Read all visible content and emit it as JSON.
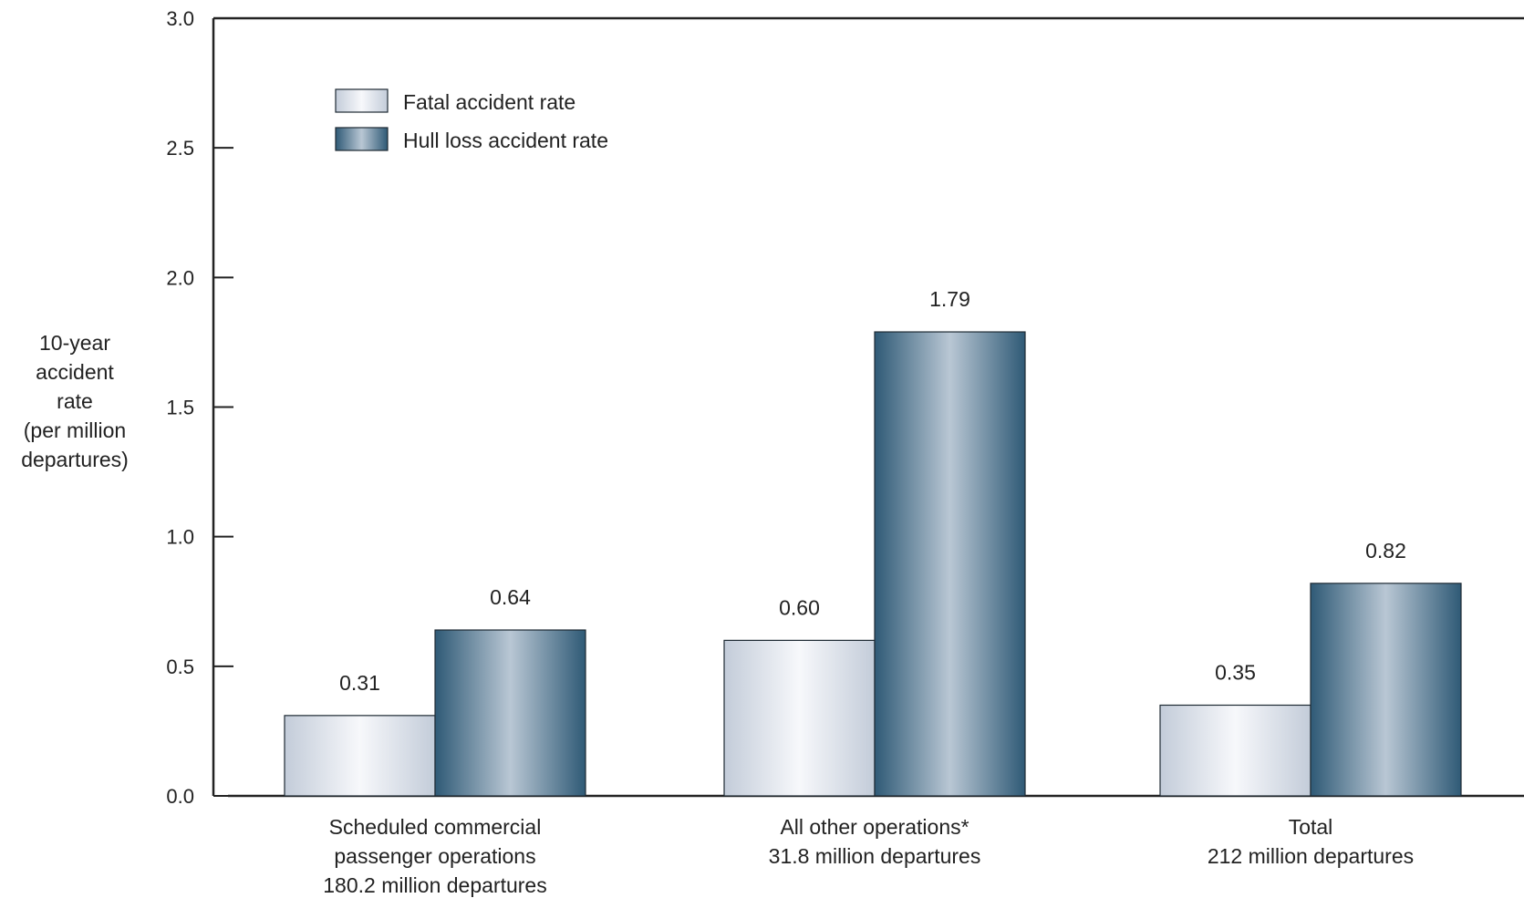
{
  "chart_data": {
    "type": "bar",
    "title": "",
    "ylabel_lines": [
      "10-year",
      "accident",
      "rate",
      "(per million",
      "departures)"
    ],
    "xlabel": "",
    "ylim": [
      0,
      3.0
    ],
    "yticks": [
      "0.0",
      "0.5",
      "1.0",
      "1.5",
      "2.0",
      "2.5",
      "3.0"
    ],
    "grid": false,
    "legend_position": "top-left",
    "categories": [
      {
        "lines": [
          "Scheduled commercial",
          "passenger operations",
          "180.2 million departures"
        ]
      },
      {
        "lines": [
          "All other operations*",
          "31.8 million departures"
        ]
      },
      {
        "lines": [
          "Total",
          "212 million departures"
        ]
      }
    ],
    "series": [
      {
        "name": "Fatal accident rate",
        "values": [
          0.31,
          0.6,
          0.35
        ],
        "value_labels": [
          "0.31",
          "0.60",
          "0.35"
        ],
        "color": "#d4dce6"
      },
      {
        "name": "Hull loss accident rate",
        "values": [
          0.64,
          1.79,
          0.82
        ],
        "value_labels": [
          "0.64",
          "1.79",
          "0.82"
        ],
        "color": "#3f6d8a"
      }
    ]
  }
}
